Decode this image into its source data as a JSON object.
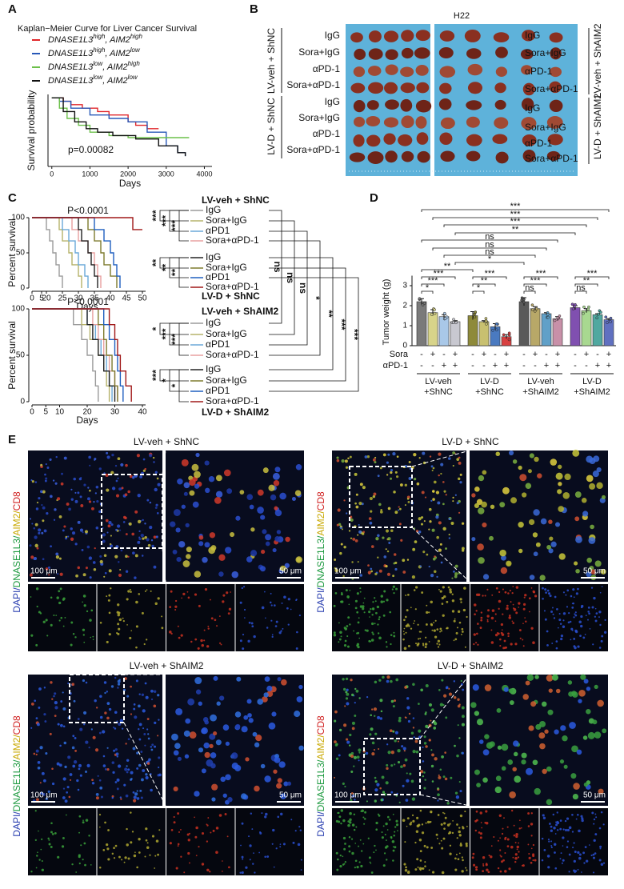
{
  "panel_letters": [
    "A",
    "B",
    "C",
    "D",
    "E"
  ],
  "chart_data": [
    {
      "type": "line",
      "step": true,
      "title": "Kaplan−Meier Curve for Liver Cancer Survival",
      "xlabel": "Days",
      "ylabel": "Survival probability",
      "annotation": "p=0.00082",
      "xlim": [
        -100,
        4200
      ],
      "ylim": [
        0,
        1.05
      ],
      "xticks": [
        0,
        1000,
        2000,
        3000,
        4000
      ],
      "series": [
        {
          "name": "DNASE1L3high, AIM2high",
          "color": "#e0262a",
          "x": [
            0,
            300,
            500,
            800,
            1200,
            1500,
            2000,
            2200,
            2500,
            2800
          ],
          "values": [
            1,
            0.95,
            0.9,
            0.85,
            0.8,
            0.75,
            0.65,
            0.6,
            0.55,
            0.55
          ]
        },
        {
          "name": "DNASE1L3high, AIM2low",
          "color": "#2858b8",
          "x": [
            0,
            200,
            500,
            1000,
            1500,
            2000,
            2500,
            3000,
            3300,
            3500
          ],
          "values": [
            1,
            0.95,
            0.85,
            0.75,
            0.7,
            0.65,
            0.5,
            0.3,
            0.2,
            0.15
          ]
        },
        {
          "name": "DNASE1L3low, AIM2high",
          "color": "#6cc04a",
          "x": [
            0,
            200,
            400,
            700,
            1000,
            1500,
            2000,
            3600
          ],
          "values": [
            1,
            0.85,
            0.7,
            0.6,
            0.5,
            0.45,
            0.42,
            0.42
          ]
        },
        {
          "name": "DNASE1L3low, AIM2low",
          "color": "#111111",
          "x": [
            0,
            300,
            600,
            900,
            1200,
            1600,
            2200,
            2800,
            3300,
            3500
          ],
          "values": [
            1,
            0.8,
            0.65,
            0.55,
            0.5,
            0.45,
            0.4,
            0.3,
            0.2,
            0.15
          ]
        }
      ]
    },
    {
      "type": "line",
      "step": true,
      "ylabel": "Percent survival",
      "xlabel": "Days",
      "annotation": "P<0.0001",
      "xlim": [
        0,
        50
      ],
      "axis_break": [
        5,
        20
      ],
      "ylim": [
        0,
        100
      ],
      "yticks": [
        0,
        50,
        100
      ],
      "xticks": [
        0,
        5,
        20,
        25,
        30,
        35,
        40,
        45,
        50
      ],
      "groups": [
        {
          "name": "LV-veh + ShNC",
          "significance": [
            "***",
            "***",
            "***"
          ],
          "series": [
            {
              "name": "IgG",
              "color": "#9a9a9a",
              "x": [
                0,
                20,
                21,
                22,
                23,
                24,
                25
              ],
              "values": [
                100,
                83,
                67,
                50,
                33,
                17,
                0
              ]
            },
            {
              "name": "Sora+IgG",
              "color": "#b5b26a",
              "x": [
                0,
                24,
                25,
                27,
                28,
                30,
                31
              ],
              "values": [
                100,
                83,
                67,
                50,
                33,
                17,
                0
              ]
            },
            {
              "name": "αPD1",
              "color": "#6aa8d8",
              "x": [
                0,
                25,
                27,
                29,
                30,
                32,
                33
              ],
              "values": [
                100,
                83,
                67,
                50,
                33,
                17,
                0
              ]
            },
            {
              "name": "Sora+αPD-1",
              "color": "#e8a0a0",
              "x": [
                0,
                28,
                30,
                33,
                35,
                36,
                37
              ],
              "values": [
                100,
                83,
                67,
                50,
                33,
                17,
                0
              ]
            }
          ]
        },
        {
          "name": "LV-D + ShNC",
          "significance": [
            "**",
            "**",
            "**"
          ],
          "series": [
            {
              "name": "IgG",
              "color": "#222222",
              "x": [
                0,
                30,
                31,
                33,
                34,
                35,
                36
              ],
              "values": [
                100,
                83,
                67,
                50,
                33,
                17,
                0
              ]
            },
            {
              "name": "Sora+IgG",
              "color": "#7d7a2e",
              "x": [
                0,
                33,
                35,
                37,
                38,
                40,
                42
              ],
              "values": [
                100,
                83,
                67,
                50,
                33,
                17,
                0
              ]
            },
            {
              "name": "αPD1",
              "color": "#1f5fbf",
              "x": [
                0,
                35,
                38,
                40,
                41,
                42,
                43
              ],
              "values": [
                100,
                83,
                67,
                50,
                33,
                17,
                0
              ]
            },
            {
              "name": "Sora+αPD-1",
              "color": "#a01818",
              "x": [
                0,
                47,
                50
              ],
              "values": [
                100,
                83,
                83
              ]
            }
          ]
        }
      ]
    },
    {
      "type": "line",
      "step": true,
      "ylabel": "Percent survival",
      "xlabel": "Days",
      "annotation": "P<0.0001",
      "xlim": [
        0,
        40
      ],
      "ylim": [
        0,
        100
      ],
      "yticks": [
        0,
        50,
        100
      ],
      "xticks": [
        0,
        5,
        10,
        20,
        30,
        40
      ],
      "groups": [
        {
          "name": "LV-veh + ShAIM2",
          "significance": [
            "*",
            "***",
            "***"
          ],
          "series": [
            {
              "name": "IgG",
              "color": "#9a9a9a",
              "x": [
                0,
                15,
                18,
                20,
                22,
                23,
                24
              ],
              "values": [
                100,
                83,
                67,
                50,
                33,
                17,
                0
              ]
            },
            {
              "name": "Sora+IgG",
              "color": "#b5b26a",
              "x": [
                0,
                18,
                21,
                24,
                26,
                27,
                28
              ],
              "values": [
                100,
                83,
                67,
                50,
                33,
                17,
                0
              ]
            },
            {
              "name": "αPD1",
              "color": "#6aa8d8",
              "x": [
                0,
                20,
                23,
                25,
                27,
                28,
                29
              ],
              "values": [
                100,
                83,
                67,
                50,
                33,
                17,
                0
              ]
            },
            {
              "name": "Sora+αPD-1",
              "color": "#e8a0a0",
              "x": [
                0,
                22,
                24,
                26,
                28,
                30,
                31
              ],
              "values": [
                100,
                83,
                67,
                50,
                33,
                17,
                0
              ]
            }
          ]
        },
        {
          "name": "LV-D + ShAIM2",
          "significance": [
            "***",
            "*",
            "*"
          ],
          "series": [
            {
              "name": "IgG",
              "color": "#222222",
              "x": [
                0,
                20,
                22,
                24,
                26,
                28,
                30
              ],
              "values": [
                100,
                83,
                67,
                50,
                33,
                17,
                0
              ]
            },
            {
              "name": "Sora+IgG",
              "color": "#7d7a2e",
              "x": [
                0,
                24,
                26,
                27,
                29,
                30,
                31
              ],
              "values": [
                100,
                83,
                67,
                50,
                33,
                17,
                0
              ]
            },
            {
              "name": "αPD1",
              "color": "#1f5fbf",
              "x": [
                0,
                26,
                28,
                30,
                31,
                32,
                33
              ],
              "values": [
                100,
                83,
                67,
                50,
                33,
                17,
                0
              ]
            },
            {
              "name": "Sora+αPD-1",
              "color": "#a01818",
              "x": [
                0,
                28,
                30,
                31,
                32,
                34,
                36
              ],
              "values": [
                100,
                83,
                67,
                50,
                33,
                17,
                0
              ]
            }
          ]
        }
      ]
    },
    {
      "type": "bar",
      "ylabel": "Tumor weight (g)",
      "ylim": [
        0,
        3.5
      ],
      "yticks": [
        0,
        1,
        2,
        3
      ],
      "values": [
        2.2,
        1.65,
        1.45,
        1.2,
        1.5,
        1.2,
        0.95,
        0.45,
        2.2,
        1.85,
        1.6,
        1.35,
        1.9,
        1.75,
        1.55,
        1.3
      ],
      "errors": [
        0.15,
        0.15,
        0.1,
        0.05,
        0.2,
        0.05,
        0.15,
        0.1,
        0.2,
        0.1,
        0.05,
        0.1,
        0.1,
        0.1,
        0.05,
        0.05
      ],
      "colors": [
        "#7a7a7a",
        "#d8d48a",
        "#a9c8e8",
        "#c8c8d0",
        "#8e8a3a",
        "#c8c070",
        "#4a7ac0",
        "#d84040",
        "#5a5a5a",
        "#b8a868",
        "#60a0c8",
        "#c890a8",
        "#8050b0",
        "#a8d890",
        "#50a8a0",
        "#6070c0"
      ],
      "factors": [
        {
          "name": "Sora",
          "values": [
            "-",
            "+",
            "-",
            "+",
            "-",
            "+",
            "-",
            "+",
            "-",
            "+",
            "-",
            "+",
            "-",
            "+",
            "-",
            "+"
          ]
        },
        {
          "name": "αPD-1",
          "values": [
            "-",
            "-",
            "+",
            "+",
            "-",
            "-",
            "+",
            "+",
            "-",
            "-",
            "+",
            "+",
            "-",
            "-",
            "+",
            "+"
          ]
        }
      ],
      "group_labels": [
        [
          "LV-veh",
          "+ShNC"
        ],
        [
          "LV-D",
          "+ShNC"
        ],
        [
          "LV-veh",
          "+ShAIM2"
        ],
        [
          "LV-D",
          "+ShAIM2"
        ]
      ],
      "significance": [
        "***",
        "***",
        "***",
        "**",
        "ns",
        "ns",
        "ns",
        "*",
        "**",
        "***",
        "***",
        "*",
        "***",
        "**",
        "*",
        "***",
        "***",
        "ns",
        "***",
        "**",
        "ns"
      ]
    }
  ],
  "panel_c": {
    "comparisons": [
      "ns",
      "ns",
      "ns",
      "*",
      "**",
      "***",
      "***"
    ]
  },
  "photo": {
    "title": "H22",
    "left_groups": [
      "LV-veh + ShNC",
      "LV-D + ShNC"
    ],
    "right_groups": [
      "LV-veh + ShAIM2",
      "LV-D + ShAIM2"
    ],
    "left_rows": [
      "IgG",
      "Sora+IgG",
      "αPD-1",
      "Sora+αPD-1",
      "IgG",
      "Sora+IgG",
      "αPD-1",
      "Sora+αPD-1"
    ],
    "right_rows": [
      "IgG",
      "Sora+IgG",
      "αPD-1",
      "Sora+αPD-1",
      "IgG",
      "Sora+IgG",
      "αPD-1",
      "Sora+αPD-1"
    ]
  },
  "microscopy": {
    "panels": [
      "LV-veh + ShNC",
      "LV-D + ShNC",
      "LV-veh + ShAIM2",
      "LV-D + ShAIM2"
    ],
    "scale_bars": [
      "100 μm",
      "50 μm"
    ],
    "stain_label": [
      "DAPI/",
      "DNASE1L3/",
      "AIM2/",
      "CD8"
    ],
    "stain_colors": [
      "#2a3fb0",
      "#1e9a40",
      "#c8a800",
      "#d02020"
    ]
  }
}
